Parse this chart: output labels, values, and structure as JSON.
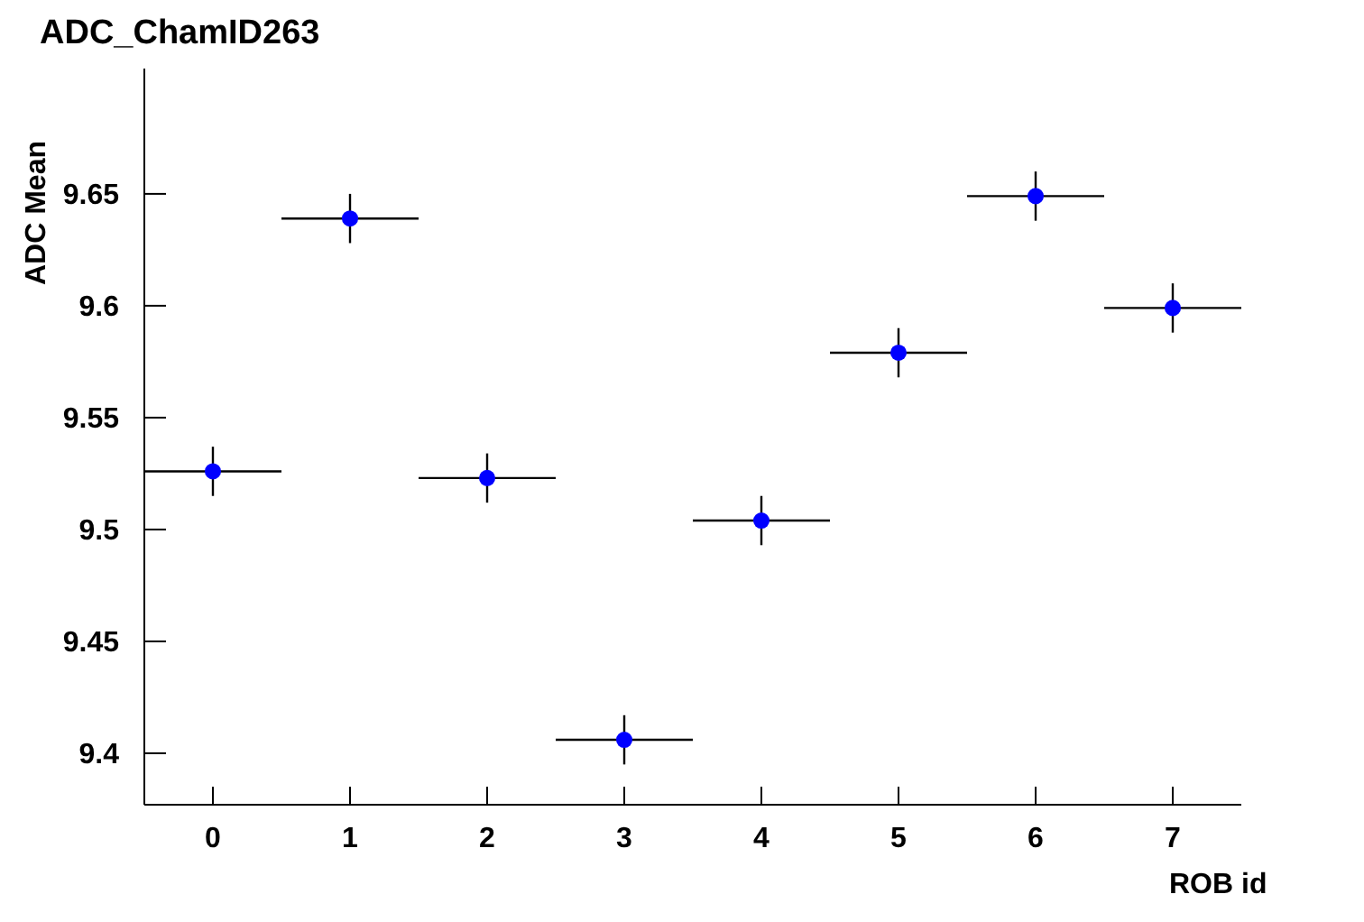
{
  "chart_data": {
    "type": "scatter",
    "title": "ADC_ChamID263",
    "xlabel": "ROB id",
    "ylabel": "ADC Mean",
    "x": [
      0,
      1,
      2,
      3,
      4,
      5,
      6,
      7
    ],
    "series": [
      {
        "color": "#0000ff",
        "values": [
          9.526,
          9.639,
          9.523,
          9.406,
          9.504,
          9.579,
          9.649,
          9.599
        ],
        "errors": [
          0.011,
          0.011,
          0.011,
          0.011,
          0.011,
          0.011,
          0.011,
          0.011
        ],
        "xerrors": [
          0.5,
          0.5,
          0.5,
          0.5,
          0.5,
          0.5,
          0.5,
          0.5
        ]
      }
    ],
    "xlim": [
      -0.5,
      7.5
    ],
    "xticks": [
      0,
      1,
      2,
      3,
      4,
      5,
      6,
      7
    ],
    "ylim": [
      9.377,
      9.706
    ],
    "yticks": [
      9.4,
      9.45,
      9.5,
      9.55,
      9.6,
      9.65
    ],
    "marker": "circle",
    "grid": false,
    "legend": false
  }
}
